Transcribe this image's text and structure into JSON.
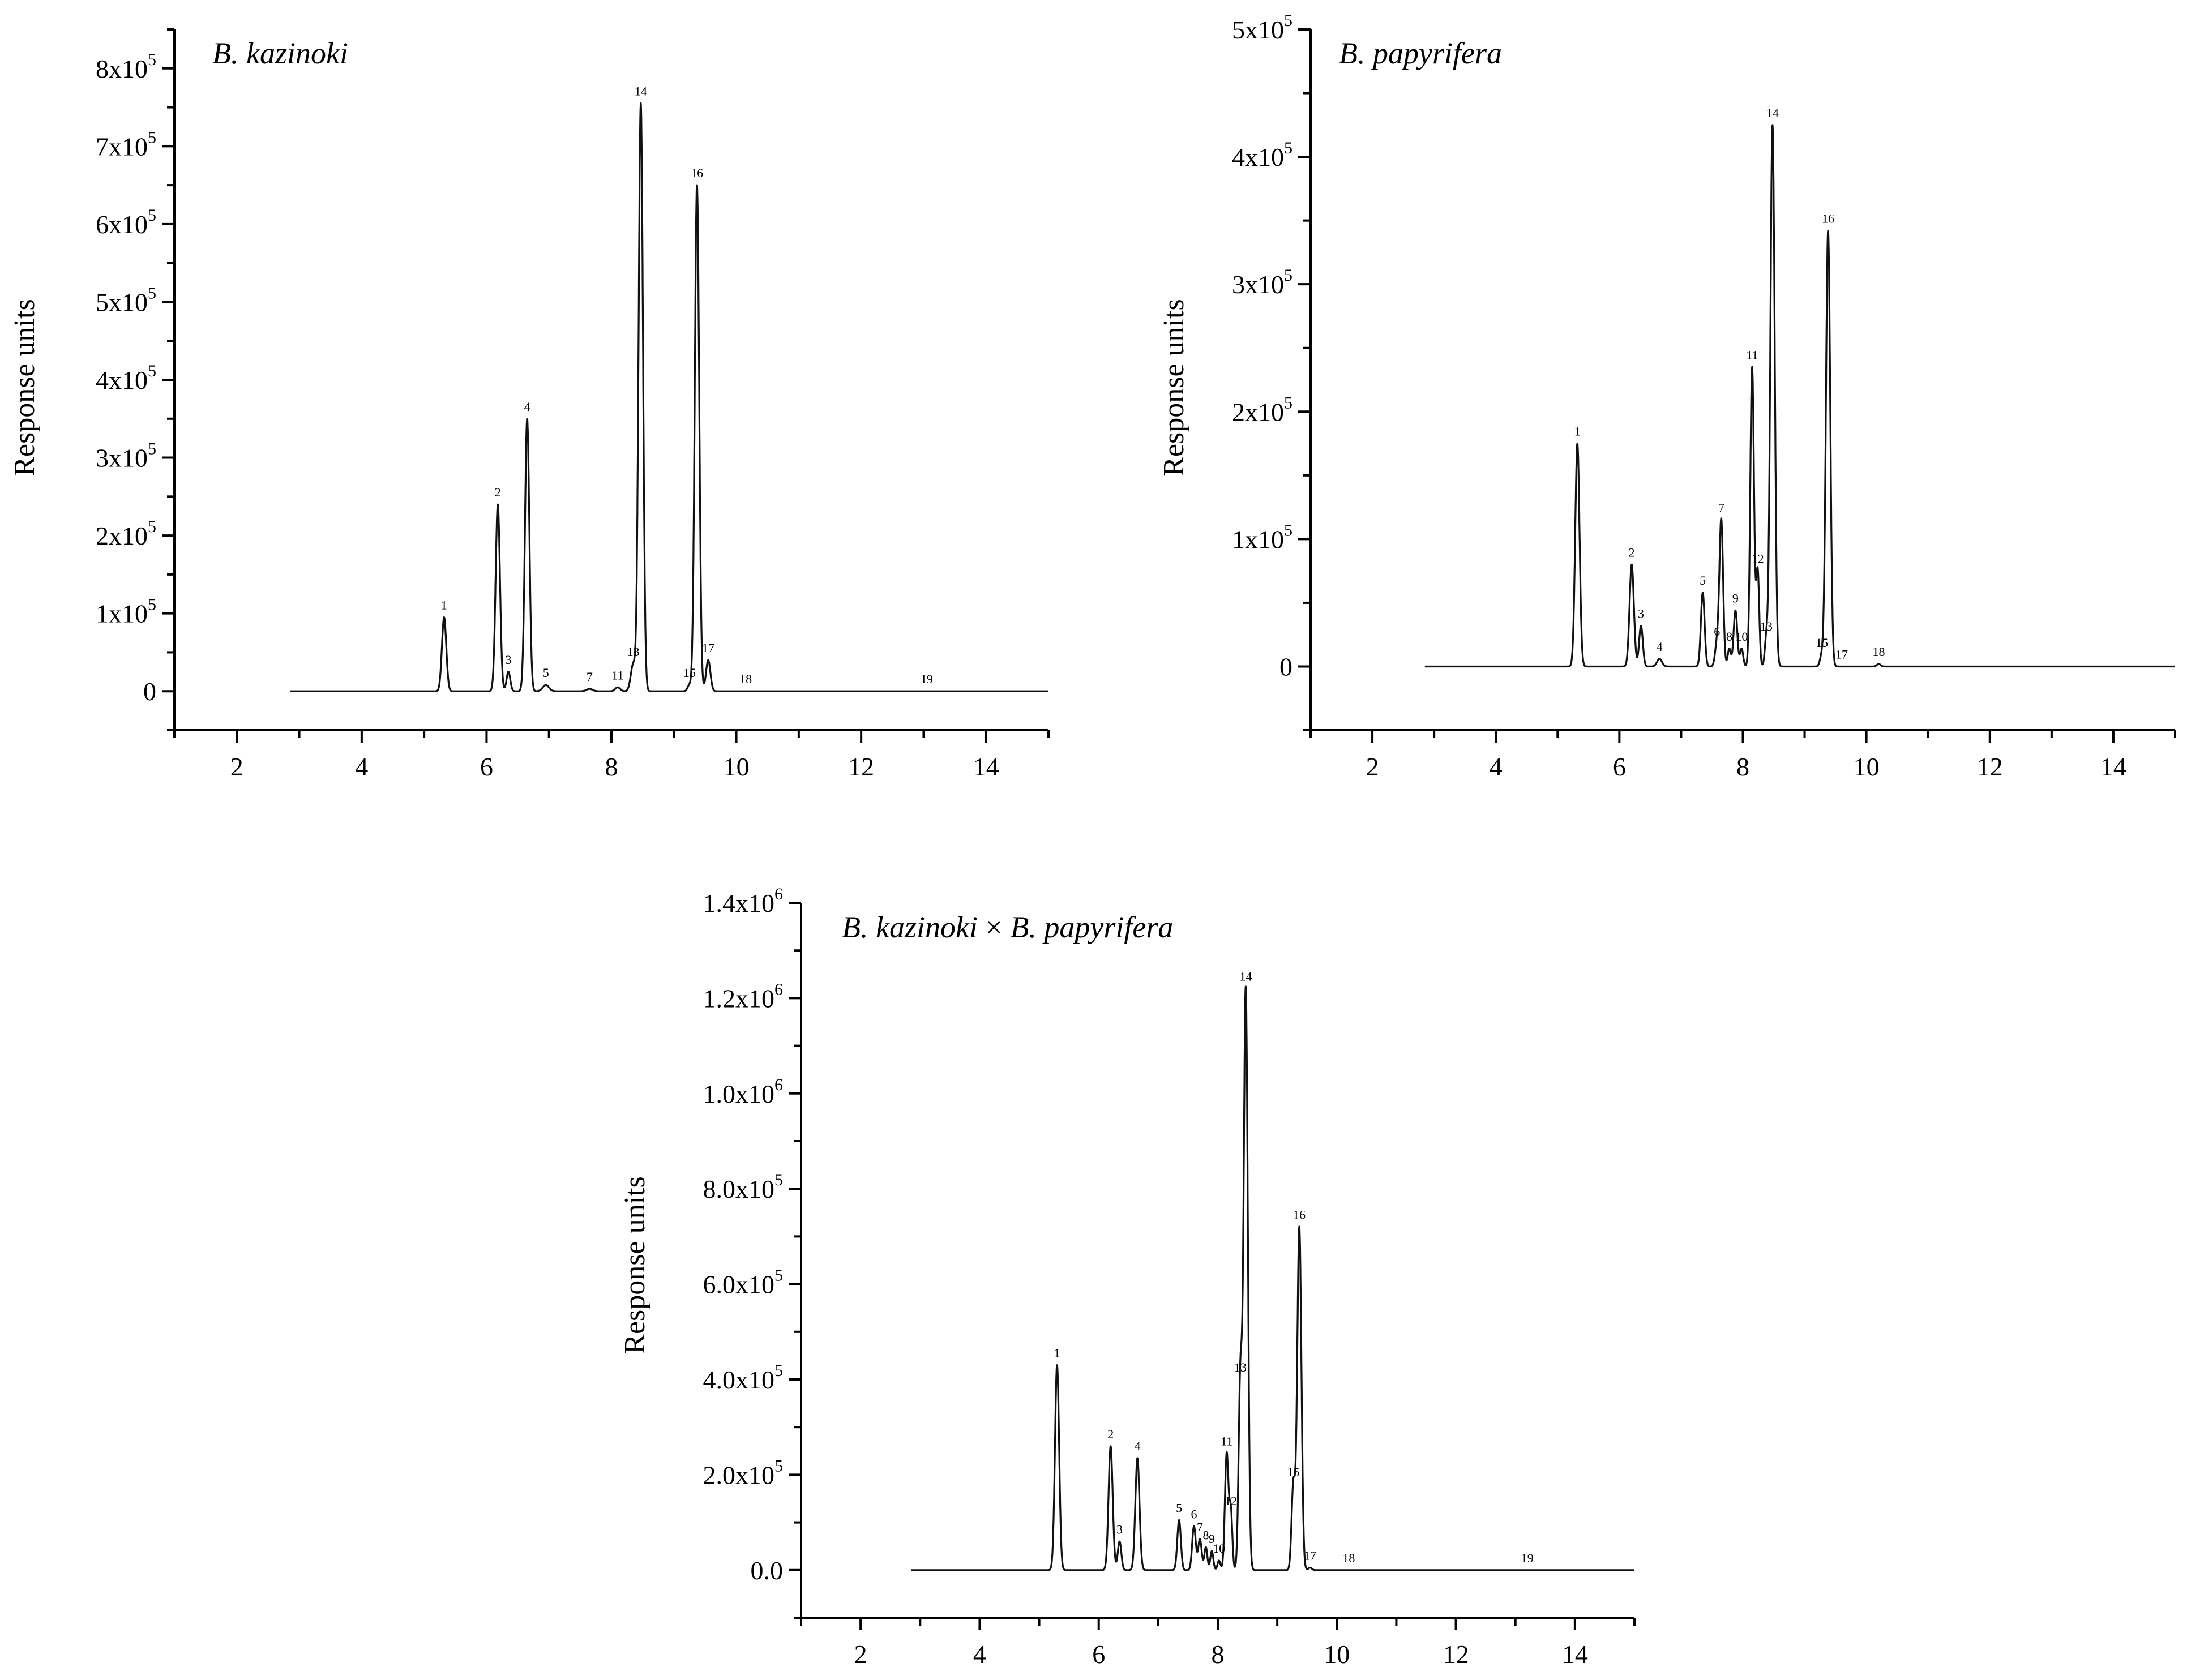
{
  "chart_data": [
    {
      "type": "line",
      "title": "B. kazinoki",
      "title_parts": [
        {
          "text": "B. kazinoki",
          "italic": true
        }
      ],
      "xlabel": "",
      "ylabel": "Response units",
      "xlim": [
        1,
        15
      ],
      "ylim": [
        -50000,
        850000
      ],
      "x_ticks": [
        2,
        4,
        6,
        8,
        10,
        12,
        14
      ],
      "x_tick_labels": [
        "2",
        "4",
        "6",
        "8",
        "10",
        "12",
        "14"
      ],
      "y_ticks": [
        0,
        100000,
        200000,
        300000,
        400000,
        500000,
        600000,
        700000,
        800000
      ],
      "y_tick_labels": [
        {
          "mant": "0",
          "exp": ""
        },
        {
          "mant": "1x10",
          "exp": "5"
        },
        {
          "mant": "2x10",
          "exp": "5"
        },
        {
          "mant": "3x10",
          "exp": "5"
        },
        {
          "mant": "4x10",
          "exp": "5"
        },
        {
          "mant": "5x10",
          "exp": "5"
        },
        {
          "mant": "6x10",
          "exp": "5"
        },
        {
          "mant": "7x10",
          "exp": "5"
        },
        {
          "mant": "8x10",
          "exp": "5"
        }
      ],
      "trace_range": [
        2.85,
        15
      ],
      "peaks": [
        {
          "label": "1",
          "x": 5.32,
          "y": 95000,
          "w": 0.035
        },
        {
          "label": "2",
          "x": 6.18,
          "y": 240000,
          "w": 0.035
        },
        {
          "label": "3",
          "x": 6.35,
          "y": 25000,
          "w": 0.03
        },
        {
          "label": "4",
          "x": 6.65,
          "y": 350000,
          "w": 0.035
        },
        {
          "label": "5",
          "x": 6.95,
          "y": 8000,
          "w": 0.05
        },
        {
          "label": "7",
          "x": 7.65,
          "y": 3000,
          "w": 0.05
        },
        {
          "label": "11",
          "x": 8.1,
          "y": 5000,
          "w": 0.04
        },
        {
          "label": "13",
          "x": 8.35,
          "y": 35000,
          "w": 0.04
        },
        {
          "label": "14",
          "x": 8.47,
          "y": 755000,
          "w": 0.035
        },
        {
          "label": "15",
          "x": 9.25,
          "y": 8000,
          "w": 0.03
        },
        {
          "label": "16",
          "x": 9.37,
          "y": 650000,
          "w": 0.035
        },
        {
          "label": "17",
          "x": 9.55,
          "y": 40000,
          "w": 0.035
        },
        {
          "label": "18",
          "x": 10.15,
          "y": 0,
          "w": 0.05
        },
        {
          "label": "19",
          "x": 13.05,
          "y": 0,
          "w": 0.05
        }
      ]
    },
    {
      "type": "line",
      "title": "B. papyrifera",
      "title_parts": [
        {
          "text": "B. papyrifera",
          "italic": true
        }
      ],
      "xlabel": "",
      "ylabel": "Response units",
      "xlim": [
        1,
        15
      ],
      "ylim": [
        -50000,
        500000
      ],
      "x_ticks": [
        2,
        4,
        6,
        8,
        10,
        12,
        14
      ],
      "x_tick_labels": [
        "2",
        "4",
        "6",
        "8",
        "10",
        "12",
        "14"
      ],
      "y_ticks": [
        0,
        100000,
        200000,
        300000,
        400000,
        500000
      ],
      "y_tick_labels": [
        {
          "mant": "0",
          "exp": ""
        },
        {
          "mant": "1x10",
          "exp": "5"
        },
        {
          "mant": "2x10",
          "exp": "5"
        },
        {
          "mant": "3x10",
          "exp": "5"
        },
        {
          "mant": "4x10",
          "exp": "5"
        },
        {
          "mant": "5x10",
          "exp": "5"
        }
      ],
      "trace_range": [
        2.85,
        15
      ],
      "peaks": [
        {
          "label": "1",
          "x": 5.32,
          "y": 175000,
          "w": 0.035
        },
        {
          "label": "2",
          "x": 6.2,
          "y": 80000,
          "w": 0.035
        },
        {
          "label": "3",
          "x": 6.35,
          "y": 32000,
          "w": 0.03
        },
        {
          "label": "4",
          "x": 6.65,
          "y": 6000,
          "w": 0.04
        },
        {
          "label": "5",
          "x": 7.35,
          "y": 58000,
          "w": 0.03
        },
        {
          "label": "6",
          "x": 7.58,
          "y": 18000,
          "w": 0.03
        },
        {
          "label": "7",
          "x": 7.65,
          "y": 115000,
          "w": 0.03
        },
        {
          "label": "8",
          "x": 7.78,
          "y": 14000,
          "w": 0.025
        },
        {
          "label": "9",
          "x": 7.88,
          "y": 44000,
          "w": 0.03
        },
        {
          "label": "10",
          "x": 7.98,
          "y": 14000,
          "w": 0.025
        },
        {
          "label": "11",
          "x": 8.15,
          "y": 235000,
          "w": 0.03
        },
        {
          "label": "12",
          "x": 8.24,
          "y": 75000,
          "w": 0.025
        },
        {
          "label": "13",
          "x": 8.38,
          "y": 22000,
          "w": 0.025
        },
        {
          "label": "14",
          "x": 8.48,
          "y": 425000,
          "w": 0.035
        },
        {
          "label": "15",
          "x": 9.28,
          "y": 9000,
          "w": 0.03
        },
        {
          "label": "16",
          "x": 9.38,
          "y": 342000,
          "w": 0.035
        },
        {
          "label": "17",
          "x": 9.6,
          "y": 0,
          "w": 0.03
        },
        {
          "label": "18",
          "x": 10.2,
          "y": 2000,
          "w": 0.03
        }
      ]
    },
    {
      "type": "line",
      "title": "B. kazinoki × B. papyrifera",
      "title_parts": [
        {
          "text": "B. kazinoki",
          "italic": true
        },
        {
          "text": " × ",
          "italic": false
        },
        {
          "text": "B. papyrifera",
          "italic": true
        }
      ],
      "xlabel": "",
      "ylabel": "Response units",
      "xlim": [
        1,
        15
      ],
      "ylim": [
        -100000,
        1400000
      ],
      "x_ticks": [
        2,
        4,
        6,
        8,
        10,
        12,
        14
      ],
      "x_tick_labels": [
        "2",
        "4",
        "6",
        "8",
        "10",
        "12",
        "14"
      ],
      "y_ticks": [
        0,
        200000,
        400000,
        600000,
        800000,
        1000000,
        1200000,
        1400000
      ],
      "y_tick_labels": [
        {
          "mant": "0.0",
          "exp": ""
        },
        {
          "mant": "2.0x10",
          "exp": "5"
        },
        {
          "mant": "4.0x10",
          "exp": "5"
        },
        {
          "mant": "6.0x10",
          "exp": "5"
        },
        {
          "mant": "8.0x10",
          "exp": "5"
        },
        {
          "mant": "1.0x10",
          "exp": "6"
        },
        {
          "mant": "1.2x10",
          "exp": "6"
        },
        {
          "mant": "1.4x10",
          "exp": "6"
        }
      ],
      "trace_range": [
        2.85,
        15
      ],
      "peaks": [
        {
          "label": "1",
          "x": 5.3,
          "y": 430000,
          "w": 0.035
        },
        {
          "label": "2",
          "x": 6.2,
          "y": 260000,
          "w": 0.035
        },
        {
          "label": "3",
          "x": 6.35,
          "y": 60000,
          "w": 0.03
        },
        {
          "label": "4",
          "x": 6.65,
          "y": 235000,
          "w": 0.035
        },
        {
          "label": "5",
          "x": 7.35,
          "y": 105000,
          "w": 0.03
        },
        {
          "label": "6",
          "x": 7.6,
          "y": 92000,
          "w": 0.03
        },
        {
          "label": "7",
          "x": 7.7,
          "y": 65000,
          "w": 0.03
        },
        {
          "label": "8",
          "x": 7.8,
          "y": 48000,
          "w": 0.025
        },
        {
          "label": "9",
          "x": 7.9,
          "y": 40000,
          "w": 0.025
        },
        {
          "label": "10",
          "x": 8.02,
          "y": 20000,
          "w": 0.025
        },
        {
          "label": "11",
          "x": 8.15,
          "y": 245000,
          "w": 0.03
        },
        {
          "label": "12",
          "x": 8.22,
          "y": 120000,
          "w": 0.025
        },
        {
          "label": "13",
          "x": 8.38,
          "y": 400000,
          "w": 0.03
        },
        {
          "label": "14",
          "x": 8.47,
          "y": 1220000,
          "w": 0.035
        },
        {
          "label": "15",
          "x": 9.27,
          "y": 180000,
          "w": 0.03
        },
        {
          "label": "16",
          "x": 9.37,
          "y": 720000,
          "w": 0.035
        },
        {
          "label": "17",
          "x": 9.55,
          "y": 5000,
          "w": 0.03
        },
        {
          "label": "18",
          "x": 10.2,
          "y": 0,
          "w": 0.03
        },
        {
          "label": "19",
          "x": 13.2,
          "y": 0,
          "w": 0.03
        }
      ]
    }
  ]
}
